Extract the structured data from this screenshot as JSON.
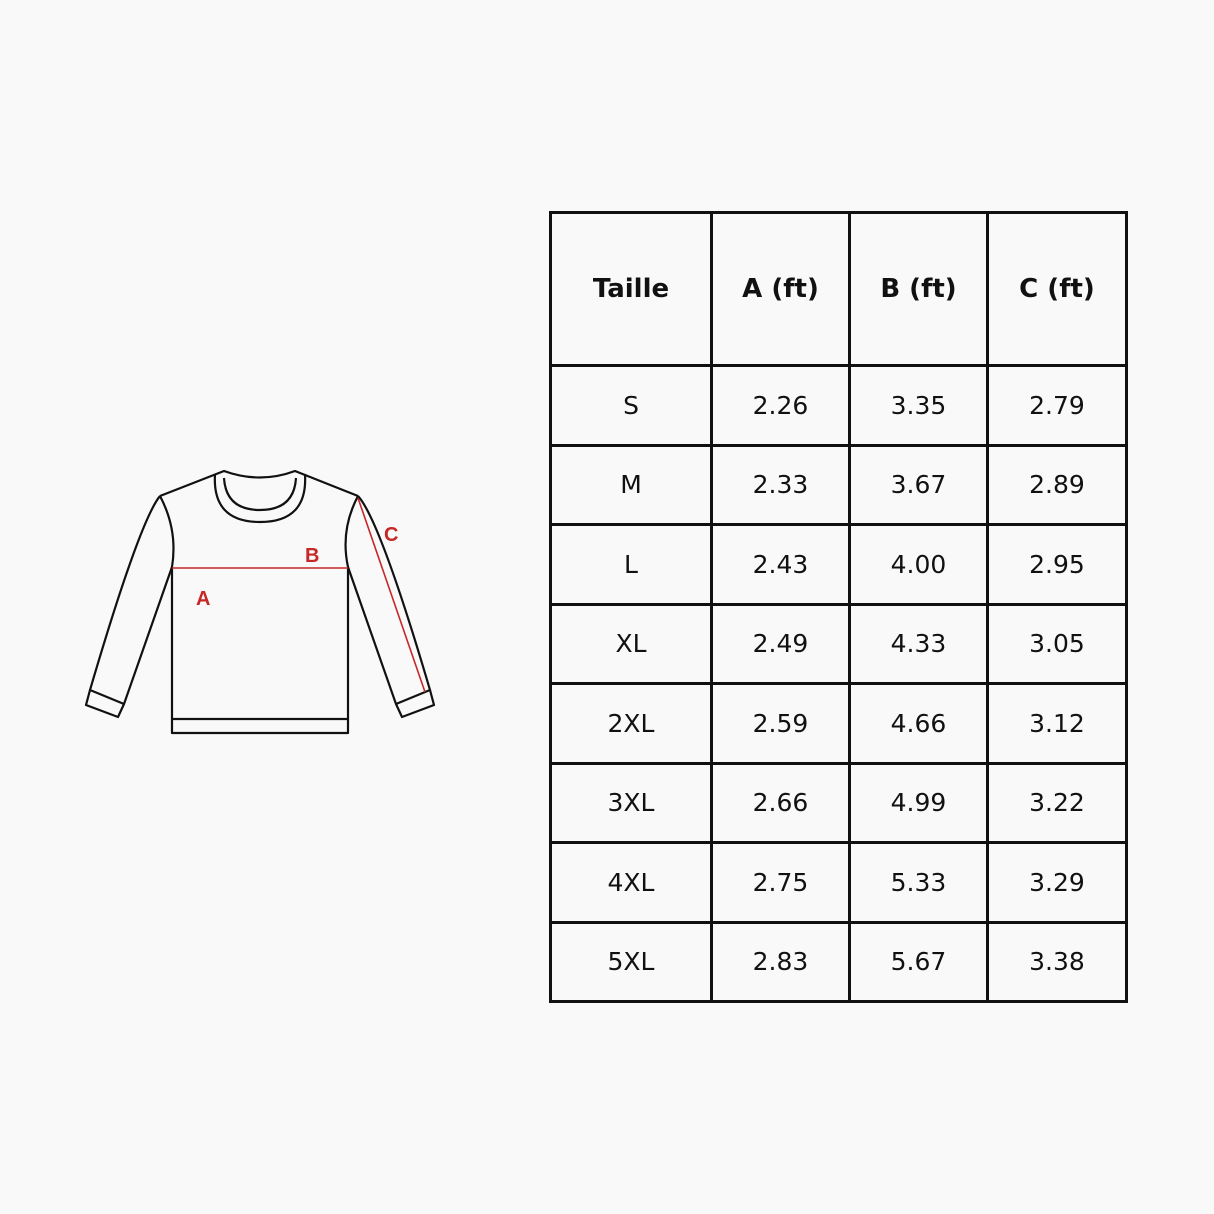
{
  "diagram": {
    "labels": {
      "a": "A",
      "b": "B",
      "c": "C"
    },
    "accent_color": "#c62828"
  },
  "table": {
    "headers": [
      "Taille",
      "A (ft)",
      "B (ft)",
      "C (ft)"
    ],
    "rows": [
      [
        "S",
        "2.26",
        "3.35",
        "2.79"
      ],
      [
        "M",
        "2.33",
        "3.67",
        "2.89"
      ],
      [
        "L",
        "2.43",
        "4.00",
        "2.95"
      ],
      [
        "XL",
        "2.49",
        "4.33",
        "3.05"
      ],
      [
        "2XL",
        "2.59",
        "4.66",
        "3.12"
      ],
      [
        "3XL",
        "2.66",
        "4.99",
        "3.22"
      ],
      [
        "4XL",
        "2.75",
        "5.33",
        "3.29"
      ],
      [
        "5XL",
        "2.83",
        "5.67",
        "3.38"
      ]
    ]
  }
}
